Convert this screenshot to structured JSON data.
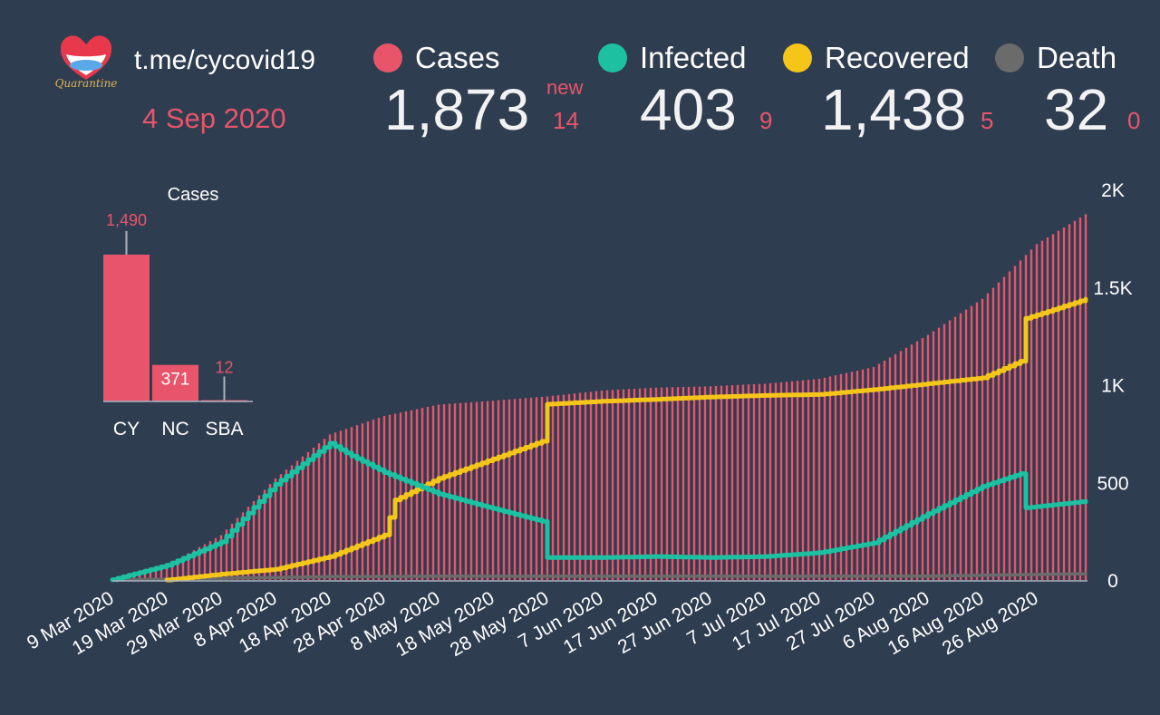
{
  "header": {
    "channel": "t.me/cycovid19",
    "date": "4 Sep 2020",
    "new_label": "new"
  },
  "stats": {
    "cases": {
      "label": "Cases",
      "value": "1,873",
      "delta": "14",
      "color": "#e8556a"
    },
    "infected": {
      "label": "Infected",
      "value": "403",
      "delta": "9",
      "color": "#1ec0a2"
    },
    "recovered": {
      "label": "Recovered",
      "value": "1,438",
      "delta": "5",
      "color": "#f6c51a"
    },
    "death": {
      "label": "Death",
      "value": "32",
      "delta": "0",
      "color": "#6b6b6b"
    }
  },
  "chart_data": [
    {
      "type": "bar",
      "title": "Cases",
      "categories": [
        "CY",
        "NC",
        "SBA"
      ],
      "values": [
        1490,
        371,
        12
      ],
      "value_labels": [
        "1,490",
        "371",
        "12"
      ],
      "color": "#e8556a"
    },
    {
      "type": "bar+line",
      "x_start": "2020-03-09",
      "x_end": "2020-09-04",
      "xticks": [
        "9 Mar 2020",
        "19 Mar 2020",
        "29 Mar 2020",
        "8 Apr 2020",
        "18 Apr 2020",
        "28 Apr 2020",
        "8 May 2020",
        "18 May 2020",
        "28 May 2020",
        "7 Jun 2020",
        "17 Jun 2020",
        "27 Jun 2020",
        "7 Jul 2020",
        "17 Jul 2020",
        "27 Jul 2020",
        "6 Aug 2020",
        "16 Aug 2020",
        "26 Aug 2020"
      ],
      "yticks": [
        "0",
        "500",
        "1K",
        "1.5K",
        "2K"
      ],
      "ylim": [
        0,
        2000
      ],
      "series": [
        {
          "name": "Cases",
          "kind": "bars",
          "color": "#e8556a",
          "points": [
            [
              "2020-03-09",
              2
            ],
            [
              "2020-03-19",
              75
            ],
            [
              "2020-03-29",
              230
            ],
            [
              "2020-04-08",
              520
            ],
            [
              "2020-04-18",
              745
            ],
            [
              "2020-04-28",
              840
            ],
            [
              "2020-05-08",
              898
            ],
            [
              "2020-05-18",
              918
            ],
            [
              "2020-05-28",
              940
            ],
            [
              "2020-06-07",
              970
            ],
            [
              "2020-06-17",
              985
            ],
            [
              "2020-06-27",
              992
            ],
            [
              "2020-07-07",
              1005
            ],
            [
              "2020-07-17",
              1030
            ],
            [
              "2020-07-27",
              1090
            ],
            [
              "2020-08-06",
              1255
            ],
            [
              "2020-08-16",
              1440
            ],
            [
              "2020-08-26",
              1720
            ],
            [
              "2020-09-04",
              1873
            ]
          ]
        },
        {
          "name": "Infected",
          "kind": "line",
          "color": "#1ec0a2",
          "points": [
            [
              "2020-03-09",
              2
            ],
            [
              "2020-03-19",
              75
            ],
            [
              "2020-03-29",
              195
            ],
            [
              "2020-04-08",
              490
            ],
            [
              "2020-04-18",
              700
            ],
            [
              "2020-04-22",
              635
            ],
            [
              "2020-04-28",
              550
            ],
            [
              "2020-05-08",
              440
            ],
            [
              "2020-05-18",
              365
            ],
            [
              "2020-05-27",
              300
            ],
            [
              "2020-05-28",
              115
            ],
            [
              "2020-06-07",
              115
            ],
            [
              "2020-06-17",
              120
            ],
            [
              "2020-06-27",
              115
            ],
            [
              "2020-07-07",
              120
            ],
            [
              "2020-07-17",
              140
            ],
            [
              "2020-07-27",
              190
            ],
            [
              "2020-08-06",
              340
            ],
            [
              "2020-08-16",
              480
            ],
            [
              "2020-08-23",
              545
            ],
            [
              "2020-08-24",
              370
            ],
            [
              "2020-09-04",
              403
            ]
          ]
        },
        {
          "name": "Recovered",
          "kind": "line",
          "color": "#f6c51a",
          "points": [
            [
              "2020-03-19",
              0
            ],
            [
              "2020-03-29",
              30
            ],
            [
              "2020-04-08",
              55
            ],
            [
              "2020-04-18",
              120
            ],
            [
              "2020-04-28",
              230
            ],
            [
              "2020-04-30",
              410
            ],
            [
              "2020-05-08",
              520
            ],
            [
              "2020-05-18",
              620
            ],
            [
              "2020-05-27",
              710
            ],
            [
              "2020-05-28",
              900
            ],
            [
              "2020-06-07",
              915
            ],
            [
              "2020-06-17",
              925
            ],
            [
              "2020-06-27",
              937
            ],
            [
              "2020-07-07",
              945
            ],
            [
              "2020-07-17",
              950
            ],
            [
              "2020-07-27",
              975
            ],
            [
              "2020-08-06",
              1005
            ],
            [
              "2020-08-16",
              1035
            ],
            [
              "2020-08-23",
              1120
            ],
            [
              "2020-08-24",
              1340
            ],
            [
              "2020-09-04",
              1438
            ]
          ]
        },
        {
          "name": "Death",
          "kind": "line",
          "color": "#6b6b6b",
          "points": [
            [
              "2020-03-09",
              0
            ],
            [
              "2020-03-29",
              9
            ],
            [
              "2020-04-18",
              17
            ],
            [
              "2020-05-08",
              19
            ],
            [
              "2020-06-07",
              19
            ],
            [
              "2020-07-07",
              19
            ],
            [
              "2020-08-06",
              20
            ],
            [
              "2020-09-04",
              32
            ]
          ]
        }
      ]
    }
  ]
}
